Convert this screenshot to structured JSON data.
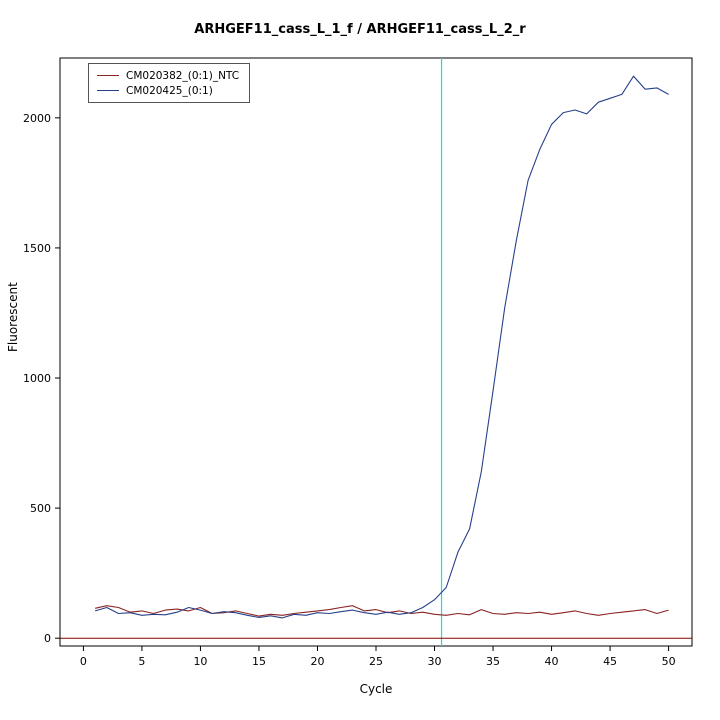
{
  "chart_data": {
    "type": "line",
    "title": "ARHGEF11_cass_L_1_f / ARHGEF11_cass_L_2_r",
    "xlabel": "Cycle",
    "ylabel": "Fluorescent",
    "xlim": [
      -2,
      52
    ],
    "ylim": [
      -30,
      2230
    ],
    "x_ticks": [
      0,
      5,
      10,
      15,
      20,
      25,
      30,
      35,
      40,
      45,
      50
    ],
    "y_ticks": [
      0,
      500,
      1000,
      1500,
      2000
    ],
    "grid": false,
    "legend_position": "top-left",
    "threshold_line": {
      "cycle": 30.6,
      "color": "#00E5EE"
    },
    "baseline": {
      "y": 0,
      "color": "#8B0000"
    },
    "x": [
      1,
      2,
      3,
      4,
      5,
      6,
      7,
      8,
      9,
      10,
      11,
      12,
      13,
      14,
      15,
      16,
      17,
      18,
      19,
      20,
      21,
      22,
      23,
      24,
      25,
      26,
      27,
      28,
      29,
      30,
      31,
      32,
      33,
      34,
      35,
      36,
      37,
      38,
      39,
      40,
      41,
      42,
      43,
      44,
      45,
      46,
      47,
      48,
      49,
      50
    ],
    "series": [
      {
        "name": "CM020382_(0:1)_NTC",
        "color": "#8B2323",
        "values": [
          115,
          125,
          118,
          100,
          105,
          95,
          108,
          112,
          105,
          118,
          95,
          98,
          105,
          95,
          85,
          92,
          88,
          95,
          100,
          105,
          110,
          118,
          125,
          105,
          110,
          98,
          105,
          95,
          100,
          92,
          88,
          95,
          90,
          110,
          95,
          92,
          98,
          95,
          100,
          92,
          98,
          105,
          95,
          88,
          95,
          100,
          105,
          110,
          95,
          108
        ]
      },
      {
        "name": "CM020425_(0:1)",
        "color": "#27408B",
        "values": [
          105,
          118,
          95,
          98,
          88,
          92,
          90,
          100,
          118,
          108,
          95,
          102,
          98,
          88,
          80,
          86,
          78,
          92,
          88,
          98,
          95,
          102,
          108,
          98,
          92,
          100,
          92,
          98,
          118,
          148,
          195,
          330,
          420,
          640,
          950,
          1270,
          1530,
          1760,
          1880,
          1975,
          2020,
          2030,
          2015,
          2060,
          2075,
          2090,
          2160,
          2110,
          2115,
          2090
        ]
      }
    ]
  }
}
